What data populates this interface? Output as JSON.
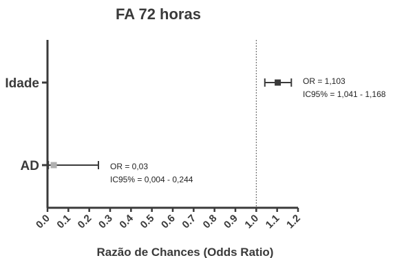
{
  "chart_data": {
    "type": "forest",
    "title": "FA 72 horas",
    "xlabel": "Razão de Chances (Odds Ratio)",
    "xlim": [
      0.0,
      1.2
    ],
    "x_ticks": [
      "0.0",
      "0.1",
      "0.2",
      "0.3",
      "0.4",
      "0.5",
      "0.6",
      "0.7",
      "0.8",
      "0.9",
      "1.0",
      "1.1",
      "1.2"
    ],
    "reference_line": 1.0,
    "grid": false,
    "rows": [
      {
        "label": "Idade",
        "or": 1.103,
        "ci_low": 1.041,
        "ci_high": 1.168,
        "color": "#3a3a3a",
        "annotation_or": "OR = 1,103",
        "annotation_ci": "IC95% = 1,041 - 1,168"
      },
      {
        "label": "AD",
        "or": 0.03,
        "ci_low": 0.004,
        "ci_high": 0.244,
        "color": "#b0b0b0",
        "annotation_or": "OR = 0,03",
        "annotation_ci": "IC95% = 0,004 - 0,244"
      }
    ]
  },
  "colors": {
    "axis": "#3a3a3a",
    "line": "#3a3a3a",
    "reference": "#555555"
  }
}
